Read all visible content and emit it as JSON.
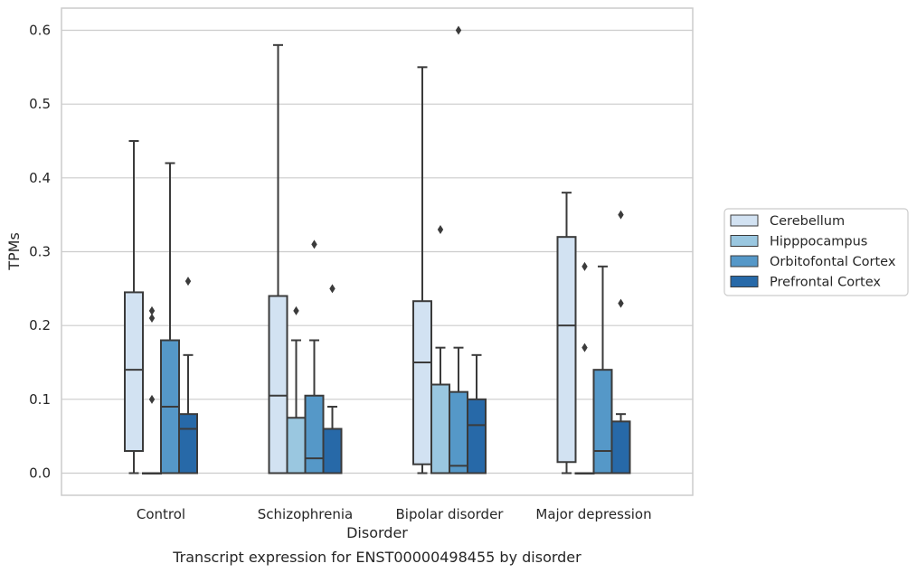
{
  "chart_data": {
    "type": "box",
    "caption": "Transcript expression for ENST00000498455 by disorder",
    "xlabel": "Disorder",
    "ylabel": "TPMs",
    "ylim": [
      -0.03,
      0.63
    ],
    "yticks": [
      "0.0",
      "0.1",
      "0.2",
      "0.3",
      "0.4",
      "0.5",
      "0.6"
    ],
    "grid": true,
    "legend_position": "right",
    "categories": [
      "Control",
      "Schizophrenia",
      "Bipolar disorder",
      "Major depression"
    ],
    "series": [
      {
        "name": "Cerebellum",
        "color": "#d2e2f2",
        "boxes": [
          {
            "whisker_low": 0.0,
            "q1": 0.03,
            "median": 0.14,
            "q3": 0.245,
            "whisker_high": 0.45,
            "outliers": []
          },
          {
            "whisker_low": 0.0,
            "q1": 0.0,
            "median": 0.105,
            "q3": 0.24,
            "whisker_high": 0.58,
            "outliers": []
          },
          {
            "whisker_low": 0.0,
            "q1": 0.012,
            "median": 0.15,
            "q3": 0.233,
            "whisker_high": 0.55,
            "outliers": []
          },
          {
            "whisker_low": 0.0,
            "q1": 0.015,
            "median": 0.2,
            "q3": 0.32,
            "whisker_high": 0.38,
            "outliers": []
          }
        ]
      },
      {
        "name": "Hipppocampus",
        "color": "#9ac7e0",
        "boxes": [
          {
            "whisker_low": 0.0,
            "q1": 0.0,
            "median": 0.0,
            "q3": 0.0,
            "whisker_high": 0.0,
            "outliers": [
              0.1,
              0.21,
              0.22
            ]
          },
          {
            "whisker_low": 0.0,
            "q1": 0.0,
            "median": 0.0,
            "q3": 0.075,
            "whisker_high": 0.18,
            "outliers": [
              0.22
            ]
          },
          {
            "whisker_low": 0.0,
            "q1": 0.0,
            "median": 0.0,
            "q3": 0.12,
            "whisker_high": 0.17,
            "outliers": [
              0.33
            ]
          },
          {
            "whisker_low": 0.0,
            "q1": 0.0,
            "median": 0.0,
            "q3": 0.0,
            "whisker_high": 0.0,
            "outliers": [
              0.17,
              0.28
            ]
          }
        ]
      },
      {
        "name": "Orbitofontal Cortex",
        "color": "#5598c8",
        "boxes": [
          {
            "whisker_low": 0.0,
            "q1": 0.0,
            "median": 0.09,
            "q3": 0.18,
            "whisker_high": 0.42,
            "outliers": []
          },
          {
            "whisker_low": 0.0,
            "q1": 0.0,
            "median": 0.02,
            "q3": 0.105,
            "whisker_high": 0.18,
            "outliers": [
              0.31
            ]
          },
          {
            "whisker_low": 0.0,
            "q1": 0.0,
            "median": 0.01,
            "q3": 0.11,
            "whisker_high": 0.17,
            "outliers": [
              0.6
            ]
          },
          {
            "whisker_low": 0.0,
            "q1": 0.0,
            "median": 0.03,
            "q3": 0.14,
            "whisker_high": 0.28,
            "outliers": []
          }
        ]
      },
      {
        "name": "Prefrontal Cortex",
        "color": "#2769a8",
        "boxes": [
          {
            "whisker_low": 0.0,
            "q1": 0.0,
            "median": 0.06,
            "q3": 0.08,
            "whisker_high": 0.16,
            "outliers": [
              0.26
            ]
          },
          {
            "whisker_low": 0.0,
            "q1": 0.0,
            "median": 0.0,
            "q3": 0.06,
            "whisker_high": 0.09,
            "outliers": [
              0.25
            ]
          },
          {
            "whisker_low": 0.0,
            "q1": 0.0,
            "median": 0.065,
            "q3": 0.1,
            "whisker_high": 0.16,
            "outliers": []
          },
          {
            "whisker_low": 0.0,
            "q1": 0.0,
            "median": 0.0,
            "q3": 0.07,
            "whisker_high": 0.08,
            "outliers": [
              0.23,
              0.35
            ]
          }
        ]
      }
    ]
  }
}
